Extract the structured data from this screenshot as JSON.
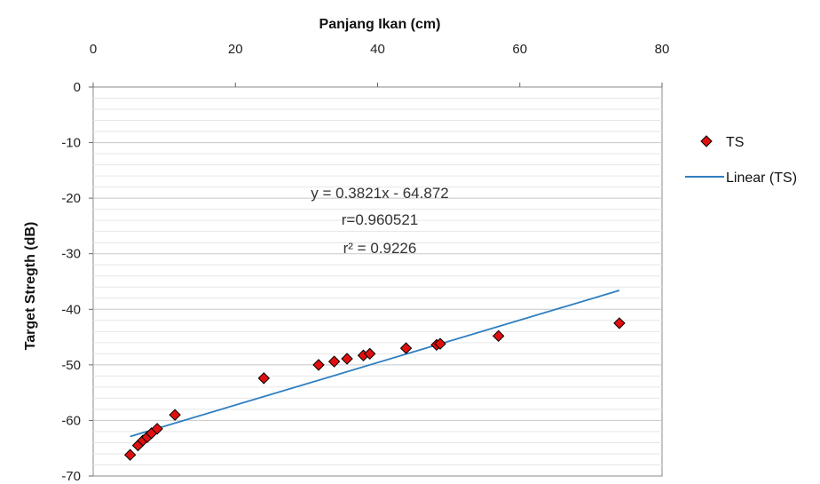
{
  "chart_data": {
    "type": "scatter",
    "xlabel": "Panjang Ikan (cm)",
    "ylabel": "Target Stregth (dB)",
    "xlim": [
      0,
      80
    ],
    "ylim": [
      -70,
      0
    ],
    "x_ticks": [
      "0",
      "20",
      "40",
      "60",
      "80"
    ],
    "y_ticks": [
      "0",
      "-10",
      "-20",
      "-30",
      "-40",
      "-50",
      "-60",
      "-70"
    ],
    "x_axis_position": "top",
    "grid": "horizontal",
    "legend_position": "right",
    "series": [
      {
        "name": "TS",
        "marker": "diamond",
        "color": "#e01010",
        "edge_color": "#000000",
        "points": [
          {
            "x": 5.2,
            "y": -66.2
          },
          {
            "x": 6.3,
            "y": -64.5
          },
          {
            "x": 7.0,
            "y": -63.6
          },
          {
            "x": 7.6,
            "y": -63.0
          },
          {
            "x": 8.2,
            "y": -62.3
          },
          {
            "x": 9.0,
            "y": -61.5
          },
          {
            "x": 11.5,
            "y": -59.0
          },
          {
            "x": 24.0,
            "y": -52.4
          },
          {
            "x": 31.7,
            "y": -50.0
          },
          {
            "x": 33.9,
            "y": -49.4
          },
          {
            "x": 35.7,
            "y": -48.9
          },
          {
            "x": 38.0,
            "y": -48.3
          },
          {
            "x": 38.9,
            "y": -48.0
          },
          {
            "x": 44.0,
            "y": -47.0
          },
          {
            "x": 48.3,
            "y": -46.4
          },
          {
            "x": 48.8,
            "y": -46.2
          },
          {
            "x": 57.0,
            "y": -44.8
          },
          {
            "x": 74.0,
            "y": -42.5
          }
        ]
      },
      {
        "name": "Linear (TS)",
        "type": "line",
        "color": "#2f7fc1",
        "slope": 0.3821,
        "intercept": -64.872,
        "x_range": [
          5.2,
          74.0
        ]
      }
    ],
    "annotations": [
      "y = 0.3821x - 64.872",
      "r=0.960521",
      "r² = 0.9226"
    ]
  }
}
